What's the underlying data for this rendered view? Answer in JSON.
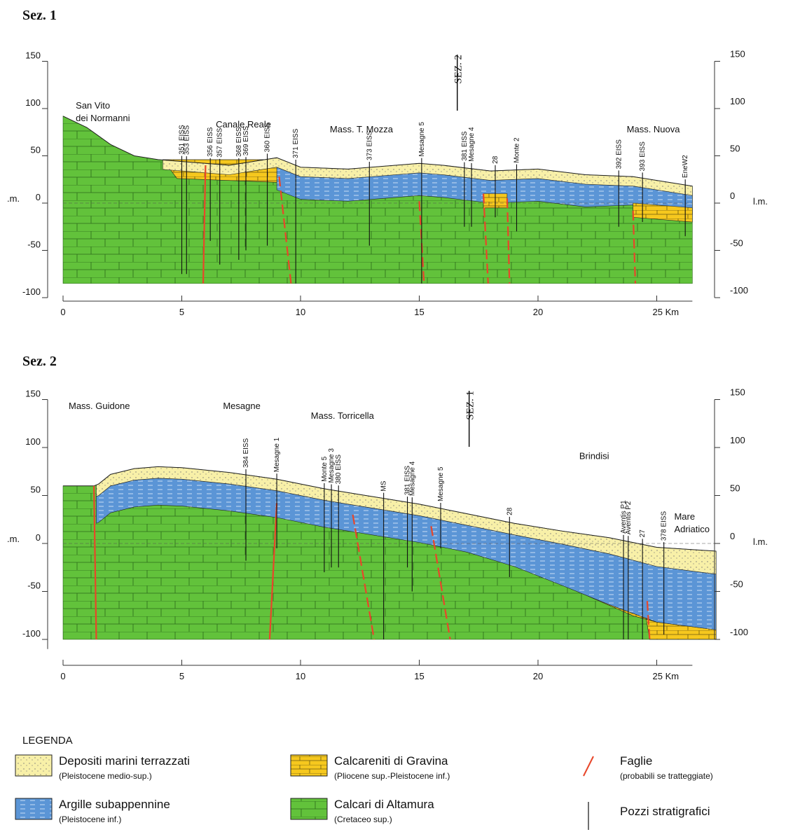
{
  "sections": [
    {
      "title": "Sez. 1",
      "marker": "SEZ. 2",
      "left_datum": ".m.",
      "right_datum": "l.m.",
      "yticks": [
        150,
        100,
        50,
        0,
        -50,
        -100
      ],
      "xticks": [
        "0",
        "5",
        "10",
        "15",
        "20",
        "25 Km"
      ],
      "places": [
        [
          "San Vito",
          "dei Normanni"
        ],
        [
          "Canale Reale"
        ],
        [
          "Mass. T. Mozza"
        ],
        [
          "Mass. Nuova"
        ]
      ],
      "wells": [
        "351 EISS",
        "353 EISS",
        "356 EISS",
        "357 EISS",
        "368 EISS",
        "369 EISS",
        "360 EISS",
        "371 EISS",
        "373 EISS",
        "Mesagne 5",
        "381 EISS",
        "Mesagne 4",
        "28",
        "Monte 2",
        "392 EISS",
        "393 EISS",
        "EneW2"
      ]
    },
    {
      "title": "Sez. 2",
      "marker": "SEZ. 1",
      "left_datum": ".m.",
      "right_datum": "l.m.",
      "yticks": [
        150,
        100,
        50,
        0,
        -50,
        -100
      ],
      "xticks": [
        "0",
        "5",
        "10",
        "15",
        "20",
        "25 Km"
      ],
      "places": [
        [
          "Mass. Guidone"
        ],
        [
          "Mesagne"
        ],
        [
          "Mass. Torricella"
        ],
        [
          "Brindisi"
        ],
        [
          "Mare",
          "Adriatico"
        ]
      ],
      "wells": [
        "384 EISS",
        "Mesagne 1",
        "Monte 5",
        "Mesagne 3",
        "380 EISS",
        "MS",
        "381 EISS",
        "Mesagne 4",
        "Mesagne 5",
        "28",
        "Aventis P1",
        "Aventis P2",
        "27",
        "378 EISS"
      ]
    }
  ],
  "legend": {
    "title": "LEGENDA",
    "items": [
      {
        "name": "Depositi marini terrazzati",
        "period": "(Pleistocene medio-sup.)"
      },
      {
        "name": "Calcareniti di Gravina",
        "period": "(Pliocene sup.-Pleistocene inf.)"
      },
      {
        "name": "Faglie",
        "period": "(probabili se tratteggiate)"
      },
      {
        "name": "Argille subappennine",
        "period": "(Pleistocene inf.)"
      },
      {
        "name": "Calcari di Altamura",
        "period": "(Cretaceo sup.)"
      },
      {
        "name": "Pozzi stratigrafici"
      }
    ]
  }
}
